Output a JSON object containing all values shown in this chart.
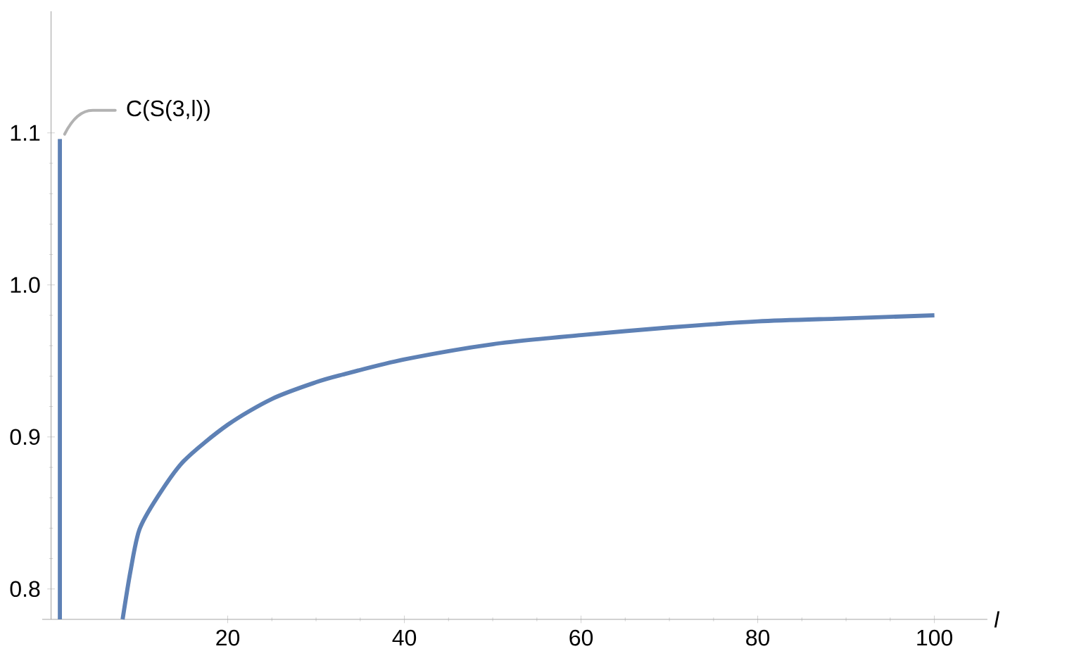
{
  "chart_data": {
    "type": "line",
    "xlabel": "l",
    "series": [
      {
        "color": "#5e81b5",
        "x": [
          1,
          1
        ],
        "values": [
          0.78,
          1.096
        ]
      },
      {
        "color": "#5e81b5",
        "x": [
          8.1,
          9,
          10,
          12,
          15,
          20,
          25,
          30,
          33,
          40,
          50,
          60,
          70,
          80,
          90,
          100
        ],
        "values": [
          0.78,
          0.812,
          0.839,
          0.86,
          0.884,
          0.908,
          0.925,
          0.936,
          0.941,
          0.951,
          0.961,
          0.967,
          0.972,
          0.976,
          0.978,
          0.98
        ]
      }
    ],
    "annotations": [
      {
        "text": "C(S(3,l))",
        "x": 1,
        "y": 1.096
      }
    ],
    "xlim": [
      -1,
      106
    ],
    "ylim": [
      0.78,
      1.18
    ],
    "xticks": [
      20,
      40,
      60,
      80,
      100
    ],
    "yticks": [
      0.8,
      0.9,
      {
        "value": 1.0,
        "label": "1.0"
      },
      1.1
    ],
    "grid": false,
    "marker": "none",
    "line_style": "solid"
  }
}
